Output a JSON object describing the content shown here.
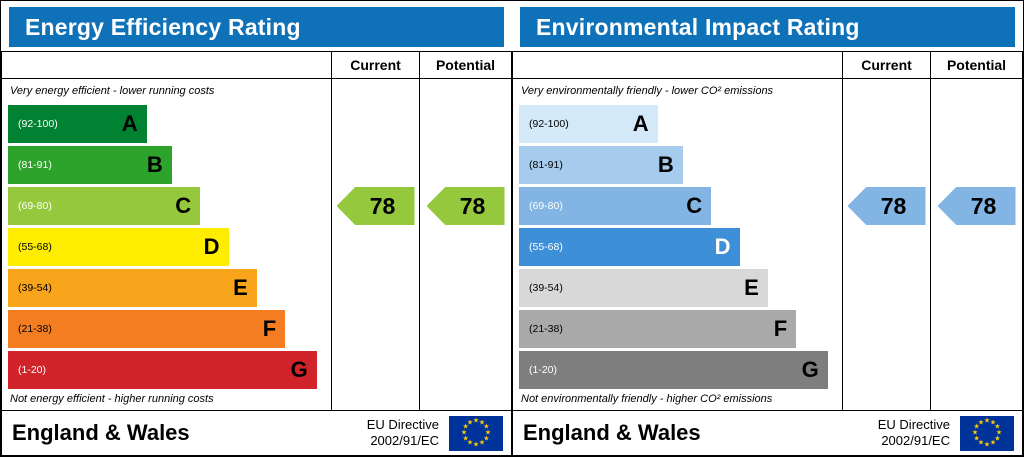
{
  "energy": {
    "title": "Energy Efficiency Rating",
    "columns": {
      "current": "Current",
      "potential": "Potential"
    },
    "top_note": "Very energy efficient - lower running costs",
    "bottom_note": "Not energy efficient - higher running costs",
    "bands": [
      {
        "letter": "A",
        "range": "(92-100)",
        "color": "#008232",
        "range_color": "#ffffff",
        "letter_color": "#000000",
        "width_pct": 44
      },
      {
        "letter": "B",
        "range": "(81-91)",
        "color": "#2ea32c",
        "range_color": "#ffffff",
        "letter_color": "#000000",
        "width_pct": 52
      },
      {
        "letter": "C",
        "range": "(69-80)",
        "color": "#95c83c",
        "range_color": "#ffffff",
        "letter_color": "#000000",
        "width_pct": 61
      },
      {
        "letter": "D",
        "range": "(55-68)",
        "color": "#ffed00",
        "range_color": "#000000",
        "letter_color": "#000000",
        "width_pct": 70
      },
      {
        "letter": "E",
        "range": "(39-54)",
        "color": "#f8a51b",
        "range_color": "#000000",
        "letter_color": "#000000",
        "width_pct": 79
      },
      {
        "letter": "F",
        "range": "(21-38)",
        "color": "#f47d21",
        "range_color": "#000000",
        "letter_color": "#000000",
        "width_pct": 88
      },
      {
        "letter": "G",
        "range": "(1-20)",
        "color": "#d0232a",
        "range_color": "#ffffff",
        "letter_color": "#000000",
        "width_pct": 98
      }
    ],
    "current": {
      "value": "78",
      "band": "C",
      "band_index": 2,
      "color": "#95c83c"
    },
    "potential": {
      "value": "78",
      "band": "C",
      "band_index": 2,
      "color": "#95c83c"
    },
    "footer": {
      "region": "England & Wales",
      "directive_line1": "EU Directive",
      "directive_line2": "2002/91/EC"
    }
  },
  "environment": {
    "title": "Environmental Impact Rating",
    "columns": {
      "current": "Current",
      "potential": "Potential"
    },
    "top_note": "Very environmentally friendly - lower CO² emissions",
    "bottom_note": "Not environmentally friendly - higher CO² emissions",
    "bands": [
      {
        "letter": "A",
        "range": "(92-100)",
        "color": "#d3e9f8",
        "range_color": "#000000",
        "letter_color": "#000000",
        "width_pct": 44
      },
      {
        "letter": "B",
        "range": "(81-91)",
        "color": "#a6cbec",
        "range_color": "#000000",
        "letter_color": "#000000",
        "width_pct": 52
      },
      {
        "letter": "C",
        "range": "(69-80)",
        "color": "#82b4e4",
        "range_color": "#ffffff",
        "letter_color": "#000000",
        "width_pct": 61
      },
      {
        "letter": "D",
        "range": "(55-68)",
        "color": "#3d8fd8",
        "range_color": "#ffffff",
        "letter_color": "#ffffff",
        "width_pct": 70
      },
      {
        "letter": "E",
        "range": "(39-54)",
        "color": "#d8d8d8",
        "range_color": "#000000",
        "letter_color": "#000000",
        "width_pct": 79
      },
      {
        "letter": "F",
        "range": "(21-38)",
        "color": "#a9a9a9",
        "range_color": "#000000",
        "letter_color": "#000000",
        "width_pct": 88
      },
      {
        "letter": "G",
        "range": "(1-20)",
        "color": "#7e7e7e",
        "range_color": "#ffffff",
        "letter_color": "#000000",
        "width_pct": 98
      }
    ],
    "current": {
      "value": "78",
      "band": "C",
      "band_index": 2,
      "color": "#82b4e4"
    },
    "potential": {
      "value": "78",
      "band": "C",
      "band_index": 2,
      "color": "#82b4e4"
    },
    "footer": {
      "region": "England & Wales",
      "directive_line1": "EU Directive",
      "directive_line2": "2002/91/EC"
    }
  },
  "chart_data": [
    {
      "type": "bar",
      "orientation": "horizontal",
      "title": "Energy Efficiency Rating",
      "categories": [
        "A (92-100)",
        "B (81-91)",
        "C (69-80)",
        "D (55-68)",
        "E (39-54)",
        "F (21-38)",
        "G (1-20)"
      ],
      "series": [
        {
          "name": "Current",
          "values": [
            78
          ],
          "band": "C"
        },
        {
          "name": "Potential",
          "values": [
            78
          ],
          "band": "C"
        }
      ],
      "xlim": [
        1,
        100
      ],
      "annotations": [
        "Very energy efficient - lower running costs",
        "Not energy efficient - higher running costs"
      ]
    },
    {
      "type": "bar",
      "orientation": "horizontal",
      "title": "Environmental Impact Rating",
      "categories": [
        "A (92-100)",
        "B (81-91)",
        "C (69-80)",
        "D (55-68)",
        "E (39-54)",
        "F (21-38)",
        "G (1-20)"
      ],
      "series": [
        {
          "name": "Current",
          "values": [
            78
          ],
          "band": "C"
        },
        {
          "name": "Potential",
          "values": [
            78
          ],
          "band": "C"
        }
      ],
      "xlim": [
        1,
        100
      ],
      "annotations": [
        "Very environmentally friendly - lower CO² emissions",
        "Not environmentally friendly - higher CO² emissions"
      ]
    }
  ]
}
